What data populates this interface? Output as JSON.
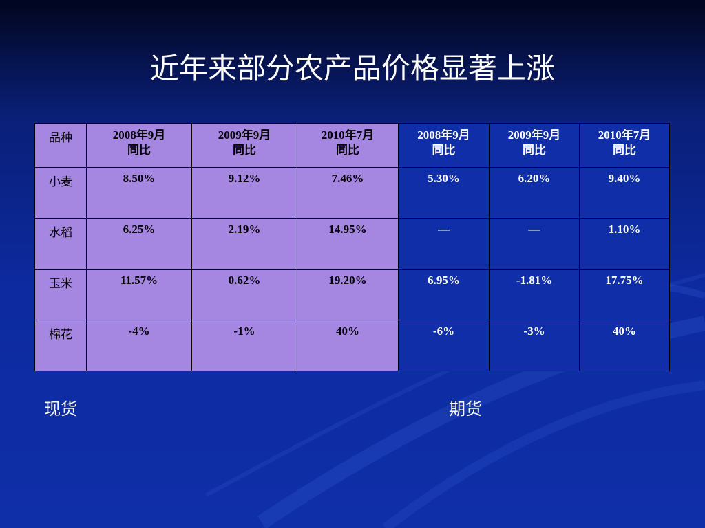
{
  "title": "近年来部分农产品价格显著上涨",
  "table": {
    "header": [
      "品种",
      "2008年9月\n同比",
      "2009年9月\n同比",
      "2010年7月\n同比",
      "2008年9月\n同比",
      "2009年9月\n同比",
      "2010年7月\n同比"
    ],
    "rows": [
      [
        "小麦",
        "8.50%",
        "9.12%",
        "7.46%",
        "5.30%",
        "6.20%",
        "9.40%"
      ],
      [
        "水稻",
        "6.25%",
        "2.19%",
        "14.95%",
        "—",
        "—",
        "1.10%"
      ],
      [
        "玉米",
        "11.57%",
        "0.62%",
        "19.20%",
        "6.95%",
        "-1.81%",
        "17.75%"
      ],
      [
        "棉花",
        "-4%",
        "-1%",
        "40%",
        "-6%",
        "-3%",
        "40%"
      ]
    ]
  },
  "captions": {
    "spot": "现货",
    "futures": "期货"
  },
  "colors": {
    "spot_cell": "#a586e0",
    "futures_cell": "#0f2ea8",
    "background": "#0d2aa0"
  }
}
